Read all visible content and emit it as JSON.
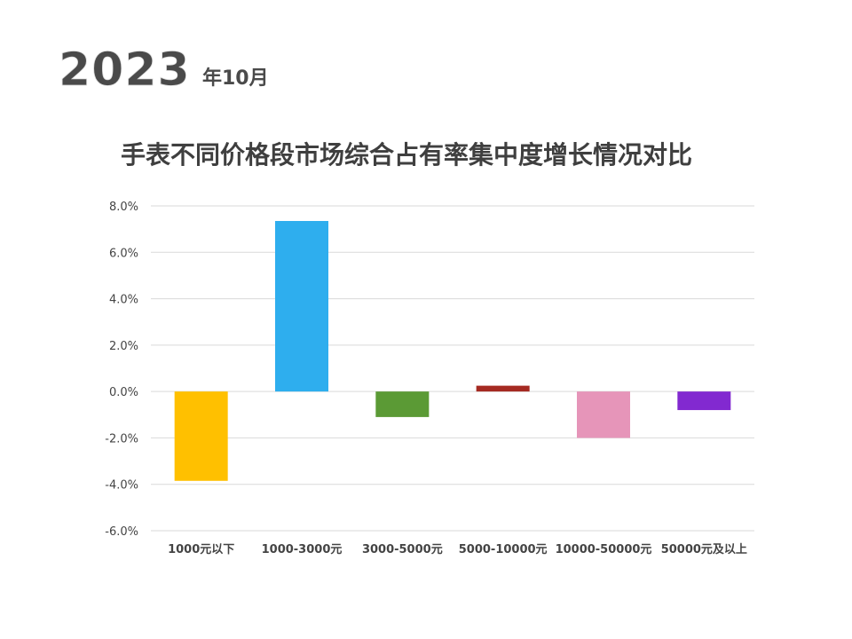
{
  "header": {
    "year": "2023",
    "month_suffix": "年10月"
  },
  "chart_data": {
    "type": "bar",
    "title": "手表不同价格段市场综合占有率集中度增长情况对比",
    "categories": [
      "1000元以下",
      "1000-3000元",
      "3000-5000元",
      "5000-10000元",
      "10000-50000元",
      "50000元及以上"
    ],
    "values": [
      -3.85,
      7.35,
      -1.1,
      0.25,
      -2.0,
      -0.8
    ],
    "colors": [
      "#FFC000",
      "#2EAEEE",
      "#5B9A35",
      "#A52A22",
      "#E695B9",
      "#8229D0"
    ],
    "ylim": [
      -6.0,
      8.0
    ],
    "yticks": [
      8.0,
      6.0,
      4.0,
      2.0,
      0.0,
      -2.0,
      -4.0,
      -6.0
    ],
    "ytick_labels": [
      "8.0%",
      "6.0%",
      "4.0%",
      "2.0%",
      "0.0%",
      "-2.0%",
      "-4.0%",
      "-6.0%"
    ],
    "grid": true,
    "legend": false,
    "xlabel": "",
    "ylabel": ""
  }
}
